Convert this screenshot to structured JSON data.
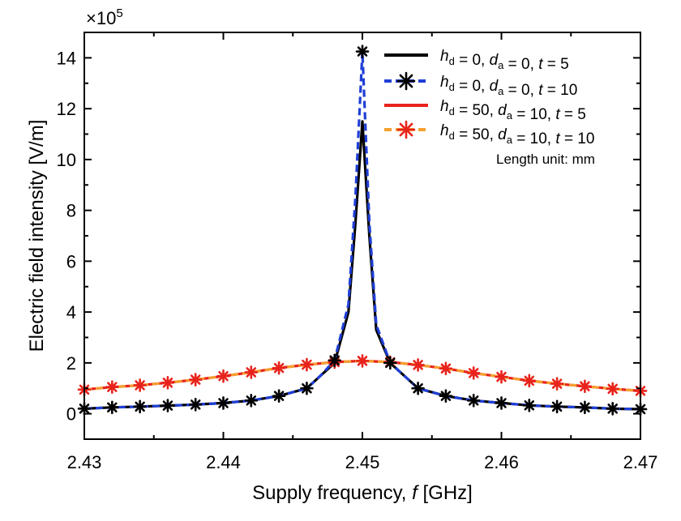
{
  "chart_data": {
    "type": "line",
    "xlabel": {
      "main": "Supply frequency, ",
      "var": "f",
      "unit": " [GHz]"
    },
    "ylabel": "Electric field intensity [V/m]",
    "y_multiplier": {
      "base": "×10",
      "exp": "5"
    },
    "xlim": [
      2.43,
      2.47
    ],
    "ylim": [
      -1,
      15
    ],
    "x_ticks": [
      2.43,
      2.44,
      2.45,
      2.46,
      2.47
    ],
    "x_tick_labels": [
      "2.43",
      "2.44",
      "2.45",
      "2.46",
      "2.47"
    ],
    "y_ticks": [
      0,
      2,
      4,
      6,
      8,
      10,
      12,
      14
    ],
    "y_tick_labels": [
      "0",
      "2",
      "4",
      "6",
      "8",
      "10",
      "12",
      "14"
    ],
    "annotation": "Length unit: mm",
    "legend_position": "top-right",
    "series": [
      {
        "name": {
          "h_val": "0",
          "d_val": "0",
          "t_val": "5"
        },
        "color": "#000000",
        "style": "solid",
        "marker": "none",
        "x": [
          2.43,
          2.432,
          2.434,
          2.436,
          2.438,
          2.44,
          2.442,
          2.444,
          2.446,
          2.447,
          2.448,
          2.449,
          2.4495,
          2.45,
          2.4505,
          2.451,
          2.452,
          2.454,
          2.456,
          2.458,
          2.46,
          2.462,
          2.464,
          2.466,
          2.468,
          2.47
        ],
        "y": [
          0.2,
          0.25,
          0.28,
          0.32,
          0.36,
          0.42,
          0.52,
          0.7,
          1.0,
          1.5,
          2.0,
          4.0,
          7.5,
          11.5,
          7.0,
          3.3,
          2.0,
          1.0,
          0.7,
          0.52,
          0.42,
          0.33,
          0.28,
          0.25,
          0.2,
          0.18
        ]
      },
      {
        "name": {
          "h_val": "0",
          "d_val": "0",
          "t_val": "10"
        },
        "color": "#1f3fd6",
        "style": "dashed",
        "marker": "#000000",
        "x": [
          2.43,
          2.432,
          2.434,
          2.436,
          2.438,
          2.44,
          2.442,
          2.444,
          2.446,
          2.447,
          2.448,
          2.449,
          2.4495,
          2.45,
          2.4505,
          2.451,
          2.452,
          2.454,
          2.456,
          2.458,
          2.46,
          2.462,
          2.464,
          2.466,
          2.468,
          2.47
        ],
        "y": [
          0.2,
          0.25,
          0.28,
          0.32,
          0.36,
          0.42,
          0.52,
          0.7,
          1.0,
          1.5,
          2.1,
          4.3,
          8.5,
          14.25,
          7.5,
          3.5,
          2.0,
          1.0,
          0.7,
          0.52,
          0.42,
          0.33,
          0.28,
          0.25,
          0.2,
          0.18
        ],
        "marker_x": [
          2.43,
          2.432,
          2.434,
          2.436,
          2.438,
          2.44,
          2.442,
          2.444,
          2.446,
          2.448,
          2.45,
          2.452,
          2.454,
          2.456,
          2.458,
          2.46,
          2.462,
          2.464,
          2.466,
          2.468,
          2.47
        ],
        "marker_y": [
          0.2,
          0.25,
          0.28,
          0.32,
          0.36,
          0.42,
          0.52,
          0.7,
          1.0,
          2.1,
          14.25,
          2.0,
          1.0,
          0.7,
          0.52,
          0.42,
          0.33,
          0.28,
          0.25,
          0.2,
          0.18
        ]
      },
      {
        "name": {
          "h_val": "50",
          "d_val": "10",
          "t_val": "5"
        },
        "color": "#e8231c",
        "style": "solid",
        "marker": "none",
        "x": [
          2.43,
          2.432,
          2.434,
          2.436,
          2.438,
          2.44,
          2.442,
          2.444,
          2.446,
          2.448,
          2.45,
          2.452,
          2.454,
          2.456,
          2.458,
          2.46,
          2.462,
          2.464,
          2.466,
          2.468,
          2.47
        ],
        "y": [
          0.95,
          1.05,
          1.12,
          1.22,
          1.34,
          1.48,
          1.63,
          1.8,
          1.93,
          2.03,
          2.08,
          2.03,
          1.92,
          1.78,
          1.6,
          1.45,
          1.3,
          1.18,
          1.08,
          0.98,
          0.9
        ]
      },
      {
        "name": {
          "h_val": "50",
          "d_val": "10",
          "t_val": "10"
        },
        "color": "#f5a030",
        "style": "dashed",
        "marker": "#e8231c",
        "x": [
          2.43,
          2.432,
          2.434,
          2.436,
          2.438,
          2.44,
          2.442,
          2.444,
          2.446,
          2.448,
          2.45,
          2.452,
          2.454,
          2.456,
          2.458,
          2.46,
          2.462,
          2.464,
          2.466,
          2.468,
          2.47
        ],
        "y": [
          0.95,
          1.05,
          1.12,
          1.22,
          1.34,
          1.48,
          1.63,
          1.8,
          1.93,
          2.03,
          2.08,
          2.03,
          1.92,
          1.78,
          1.6,
          1.45,
          1.3,
          1.18,
          1.08,
          0.98,
          0.9
        ],
        "marker_x": [
          2.43,
          2.432,
          2.434,
          2.436,
          2.438,
          2.44,
          2.442,
          2.444,
          2.446,
          2.448,
          2.45,
          2.452,
          2.454,
          2.456,
          2.458,
          2.46,
          2.462,
          2.464,
          2.466,
          2.468,
          2.47
        ],
        "marker_y": [
          0.95,
          1.05,
          1.12,
          1.22,
          1.34,
          1.48,
          1.63,
          1.8,
          1.93,
          2.03,
          2.08,
          2.03,
          1.92,
          1.78,
          1.6,
          1.45,
          1.3,
          1.18,
          1.08,
          0.98,
          0.9
        ]
      }
    ]
  }
}
